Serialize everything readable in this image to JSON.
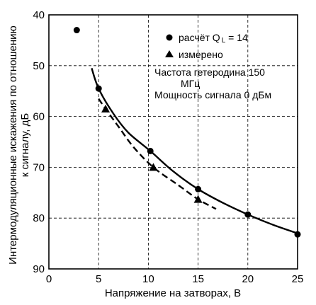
{
  "chart_data": {
    "type": "line",
    "xlabel": "Напряжение на затворах, В",
    "ylabel_line1": "Интермодуляционные искажения по отношению",
    "ylabel_line2": "к сигналу, дБ",
    "xlim": [
      0,
      25
    ],
    "ylim": [
      40,
      90
    ],
    "y_inverted": true,
    "x_ticks": [
      0,
      5,
      10,
      15,
      20,
      25
    ],
    "y_ticks": [
      40,
      50,
      60,
      70,
      80,
      90
    ],
    "grid": true,
    "legend_position": "top-right",
    "series": [
      {
        "name": "расчёт QL = 14",
        "marker": "circle",
        "line_style": "solid",
        "points": [
          {
            "x": 2.8,
            "y": 43.0
          },
          {
            "x": 5.0,
            "y": 54.5
          },
          {
            "x": 10.2,
            "y": 66.8
          },
          {
            "x": 15.0,
            "y": 74.3
          },
          {
            "x": 20.0,
            "y": 79.3
          },
          {
            "x": 25.0,
            "y": 83.2
          }
        ],
        "curve": [
          {
            "x": 4.3,
            "y": 50.5
          },
          {
            "x": 5.0,
            "y": 54.5
          },
          {
            "x": 6.5,
            "y": 59.5
          },
          {
            "x": 8.0,
            "y": 63.2
          },
          {
            "x": 10.2,
            "y": 66.8
          },
          {
            "x": 12.5,
            "y": 70.8
          },
          {
            "x": 15.0,
            "y": 74.3
          },
          {
            "x": 17.5,
            "y": 77.0
          },
          {
            "x": 20.0,
            "y": 79.3
          },
          {
            "x": 22.5,
            "y": 81.3
          },
          {
            "x": 25.0,
            "y": 83.0
          }
        ]
      },
      {
        "name": "измерено",
        "marker": "triangle",
        "line_style": "dashed",
        "points": [
          {
            "x": 5.7,
            "y": 58.5
          },
          {
            "x": 10.5,
            "y": 70.0
          },
          {
            "x": 15.0,
            "y": 76.3
          }
        ],
        "curve": [
          {
            "x": 5.0,
            "y": 56.5
          },
          {
            "x": 5.7,
            "y": 58.5
          },
          {
            "x": 7.0,
            "y": 62.0
          },
          {
            "x": 8.5,
            "y": 66.0
          },
          {
            "x": 10.5,
            "y": 70.0
          },
          {
            "x": 13.0,
            "y": 73.5
          },
          {
            "x": 15.0,
            "y": 76.3
          },
          {
            "x": 16.8,
            "y": 78.2
          }
        ]
      }
    ],
    "legend": {
      "calc_label": "расчёт Q",
      "calc_sub": "L",
      "calc_value": " = 14",
      "meas_label": "измерено"
    },
    "annotations": {
      "line1": "Частота гетеродина 150",
      "line2": "МГц",
      "line3": "Мощность сигнала 0 дБм"
    }
  }
}
